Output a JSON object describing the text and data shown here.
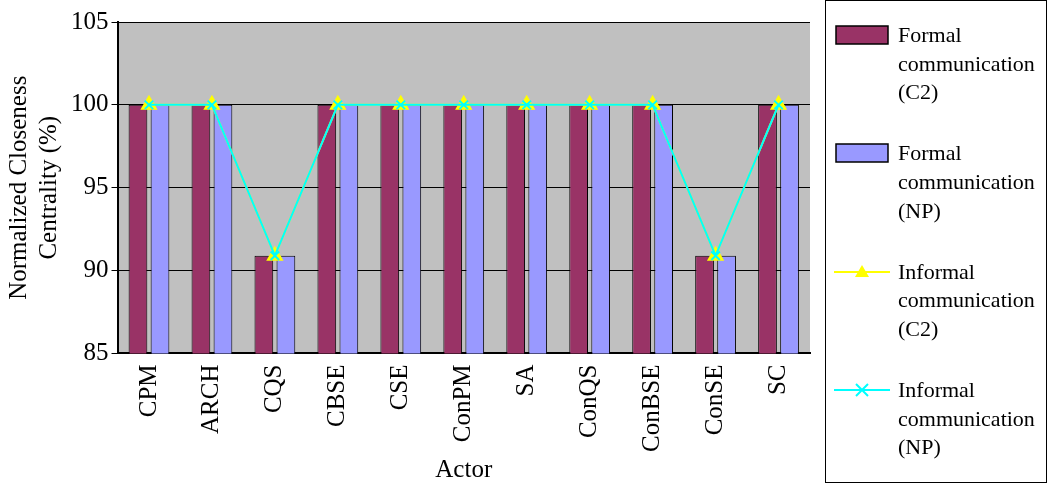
{
  "chart_data": {
    "type": "bar",
    "xlabel": "Actor",
    "ylabel": "Normalized Closeness Centrality (%)",
    "categories": [
      "CPM",
      "ARCH",
      "CQS",
      "CBSE",
      "CSE",
      "ConPM",
      "SA",
      "ConQS",
      "ConBSE",
      "ConSE",
      "SC"
    ],
    "series": [
      {
        "name": "Formal communication (C2)",
        "color": "#993366",
        "values": [
          100,
          100,
          90.9,
          100,
          100,
          100,
          100,
          100,
          100,
          90.9,
          100
        ]
      },
      {
        "name": "Formal communication (NP)",
        "color": "#9999ff",
        "values": [
          100,
          100,
          90.9,
          100,
          100,
          100,
          100,
          100,
          100,
          90.9,
          100
        ]
      },
      {
        "name": "Informal communication (C2)",
        "type": "line",
        "color": "#ffff00",
        "marker": "triangle",
        "values": [
          100,
          100,
          90.9,
          100,
          100,
          100,
          100,
          100,
          100,
          90.9,
          100
        ]
      },
      {
        "name": "Informal communication (NP)",
        "type": "line",
        "color": "#00ffff",
        "marker": "cross",
        "values": [
          100,
          100,
          90.9,
          100,
          100,
          100,
          100,
          100,
          100,
          90.9,
          100
        ]
      }
    ],
    "ylim": [
      85,
      105
    ],
    "yticks": [
      85,
      90,
      95,
      100,
      105
    ],
    "grid": "y",
    "legend": "right"
  }
}
